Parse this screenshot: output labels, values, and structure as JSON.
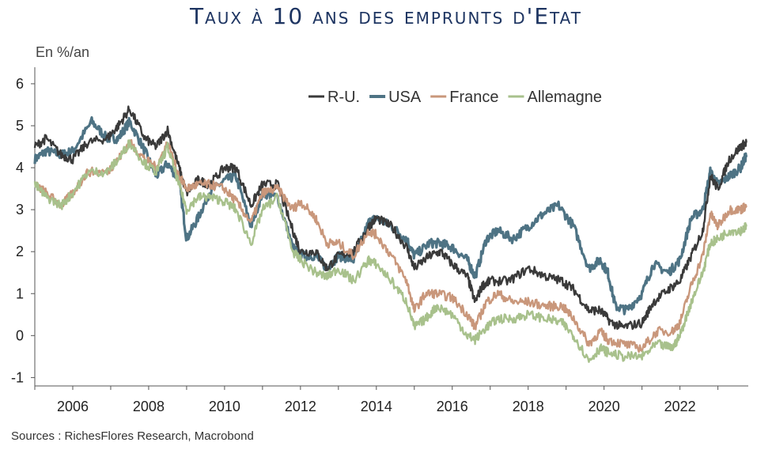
{
  "header": {
    "title": "Taux à 10 ans des emprunts d'Etat",
    "unit_label": "En %/an"
  },
  "footer": {
    "source": "Sources : RichesFlores Research, Macrobond"
  },
  "colors": {
    "R-U.": "#3a3a3a",
    "USA": "#4e7384",
    "France": "#c9977b",
    "Allemagne": "#a8c18c"
  },
  "chart_data": {
    "type": "line",
    "title": "Taux à 10 ans des emprunts d'Etat",
    "ylabel": "En %/an",
    "xlabel": "",
    "xlim": [
      2005.0,
      2023.8
    ],
    "ylim": [
      -1.2,
      6.3
    ],
    "yticks": [
      "6",
      "5",
      "4",
      "3",
      "2",
      "1",
      "0",
      "-1"
    ],
    "ytick_values": [
      6,
      5,
      4,
      3,
      2,
      1,
      0,
      -1
    ],
    "xticks": [
      "2006",
      "2008",
      "2010",
      "2012",
      "2014",
      "2016",
      "2018",
      "2020",
      "2022"
    ],
    "xtick_values": [
      2006,
      2008,
      2010,
      2012,
      2014,
      2016,
      2018,
      2020,
      2022
    ],
    "grid": false,
    "legend": "top",
    "series": [
      {
        "name": "R-U.",
        "x": [
          2005.0,
          2005.3,
          2005.7,
          2006.0,
          2006.4,
          2006.9,
          2007.2,
          2007.5,
          2007.9,
          2008.2,
          2008.5,
          2008.8,
          2009.0,
          2009.3,
          2009.6,
          2010.0,
          2010.3,
          2010.7,
          2011.0,
          2011.4,
          2011.8,
          2012.0,
          2012.4,
          2012.7,
          2013.0,
          2013.4,
          2013.8,
          2014.0,
          2014.4,
          2014.8,
          2015.0,
          2015.4,
          2015.7,
          2016.0,
          2016.4,
          2016.6,
          2016.8,
          2017.0,
          2017.5,
          2018.0,
          2018.5,
          2018.9,
          2019.2,
          2019.6,
          2019.9,
          2020.2,
          2020.5,
          2021.0,
          2021.3,
          2021.7,
          2022.0,
          2022.3,
          2022.6,
          2022.8,
          2023.0,
          2023.3,
          2023.6,
          2023.75
        ],
        "y": [
          4.5,
          4.7,
          4.3,
          4.2,
          4.6,
          4.7,
          5.0,
          5.4,
          4.7,
          4.5,
          4.9,
          4.0,
          3.4,
          3.7,
          3.6,
          4.0,
          4.0,
          3.1,
          3.6,
          3.6,
          2.5,
          2.0,
          2.0,
          1.6,
          1.9,
          2.0,
          2.6,
          2.8,
          2.6,
          2.1,
          1.6,
          1.9,
          2.0,
          1.7,
          1.4,
          0.8,
          1.2,
          1.3,
          1.3,
          1.6,
          1.4,
          1.3,
          1.1,
          0.6,
          0.6,
          0.3,
          0.2,
          0.3,
          0.8,
          1.1,
          1.3,
          1.9,
          2.5,
          3.8,
          3.5,
          4.2,
          4.5,
          4.6
        ]
      },
      {
        "name": "USA",
        "x": [
          2005.0,
          2005.3,
          2005.7,
          2006.0,
          2006.5,
          2006.9,
          2007.2,
          2007.5,
          2007.9,
          2008.2,
          2008.5,
          2008.8,
          2009.0,
          2009.3,
          2009.6,
          2010.0,
          2010.3,
          2010.7,
          2011.0,
          2011.4,
          2011.8,
          2012.0,
          2012.4,
          2012.7,
          2013.0,
          2013.4,
          2013.8,
          2014.0,
          2014.4,
          2014.8,
          2015.0,
          2015.4,
          2015.7,
          2016.0,
          2016.4,
          2016.6,
          2016.9,
          2017.2,
          2017.6,
          2018.0,
          2018.4,
          2018.8,
          2019.2,
          2019.6,
          2019.9,
          2020.1,
          2020.3,
          2020.6,
          2021.0,
          2021.3,
          2021.7,
          2022.0,
          2022.3,
          2022.6,
          2022.8,
          2023.0,
          2023.3,
          2023.6,
          2023.75
        ],
        "y": [
          4.2,
          4.4,
          4.3,
          4.4,
          5.1,
          4.7,
          4.7,
          5.1,
          4.4,
          3.8,
          4.1,
          3.7,
          2.3,
          2.8,
          3.4,
          3.7,
          3.8,
          2.6,
          3.4,
          3.3,
          2.1,
          1.9,
          1.9,
          1.6,
          1.9,
          1.8,
          2.7,
          2.8,
          2.6,
          2.3,
          1.9,
          2.2,
          2.2,
          2.1,
          1.8,
          1.4,
          2.3,
          2.5,
          2.3,
          2.6,
          2.9,
          3.1,
          2.6,
          1.6,
          1.8,
          1.5,
          0.7,
          0.6,
          1.0,
          1.7,
          1.5,
          1.8,
          2.8,
          3.0,
          3.9,
          3.6,
          3.8,
          4.0,
          4.3
        ]
      },
      {
        "name": "France",
        "x": [
          2005.0,
          2005.3,
          2005.7,
          2006.0,
          2006.4,
          2006.9,
          2007.2,
          2007.5,
          2007.9,
          2008.2,
          2008.5,
          2008.8,
          2009.0,
          2009.3,
          2009.6,
          2010.0,
          2010.3,
          2010.7,
          2011.0,
          2011.4,
          2011.8,
          2012.0,
          2012.4,
          2012.7,
          2013.0,
          2013.4,
          2013.8,
          2014.0,
          2014.4,
          2014.8,
          2015.0,
          2015.3,
          2015.6,
          2016.0,
          2016.4,
          2016.6,
          2016.9,
          2017.2,
          2017.6,
          2018.0,
          2018.5,
          2018.9,
          2019.2,
          2019.6,
          2019.9,
          2020.1,
          2020.5,
          2021.0,
          2021.4,
          2021.8,
          2022.0,
          2022.3,
          2022.6,
          2022.8,
          2023.0,
          2023.3,
          2023.6,
          2023.75
        ],
        "y": [
          3.6,
          3.4,
          3.1,
          3.4,
          3.9,
          3.9,
          4.2,
          4.6,
          4.2,
          4.0,
          4.6,
          3.8,
          3.5,
          3.6,
          3.6,
          3.5,
          3.2,
          2.7,
          3.4,
          3.5,
          3.0,
          3.2,
          2.8,
          2.2,
          2.2,
          1.9,
          2.5,
          2.4,
          1.9,
          1.3,
          0.6,
          1.0,
          1.0,
          0.9,
          0.5,
          0.2,
          0.8,
          1.0,
          0.8,
          0.8,
          0.7,
          0.7,
          0.4,
          -0.2,
          0.1,
          -0.1,
          -0.2,
          -0.3,
          0.1,
          0.1,
          0.3,
          1.2,
          1.9,
          2.9,
          2.6,
          3.0,
          3.0,
          3.1
        ]
      },
      {
        "name": "Allemagne",
        "x": [
          2005.0,
          2005.3,
          2005.7,
          2006.0,
          2006.4,
          2006.9,
          2007.2,
          2007.5,
          2007.9,
          2008.2,
          2008.5,
          2008.8,
          2009.0,
          2009.3,
          2009.6,
          2010.0,
          2010.3,
          2010.7,
          2011.0,
          2011.4,
          2011.8,
          2012.0,
          2012.4,
          2012.7,
          2013.0,
          2013.4,
          2013.8,
          2014.0,
          2014.4,
          2014.8,
          2015.0,
          2015.3,
          2015.6,
          2016.0,
          2016.4,
          2016.6,
          2016.9,
          2017.2,
          2017.6,
          2018.0,
          2018.5,
          2018.9,
          2019.2,
          2019.6,
          2019.9,
          2020.1,
          2020.5,
          2021.0,
          2021.4,
          2021.8,
          2022.0,
          2022.3,
          2022.6,
          2022.8,
          2023.0,
          2023.3,
          2023.6,
          2023.75
        ],
        "y": [
          3.6,
          3.3,
          3.1,
          3.4,
          3.9,
          3.9,
          4.2,
          4.6,
          4.1,
          3.9,
          4.5,
          3.6,
          3.0,
          3.3,
          3.3,
          3.2,
          3.0,
          2.2,
          3.0,
          3.3,
          2.0,
          1.8,
          1.5,
          1.4,
          1.6,
          1.3,
          1.8,
          1.7,
          1.3,
          0.8,
          0.2,
          0.4,
          0.7,
          0.5,
          0.0,
          -0.1,
          0.2,
          0.4,
          0.4,
          0.5,
          0.4,
          0.3,
          0.0,
          -0.6,
          -0.3,
          -0.4,
          -0.5,
          -0.5,
          -0.2,
          -0.3,
          0.0,
          0.8,
          1.5,
          2.2,
          2.3,
          2.5,
          2.5,
          2.6
        ]
      }
    ]
  }
}
